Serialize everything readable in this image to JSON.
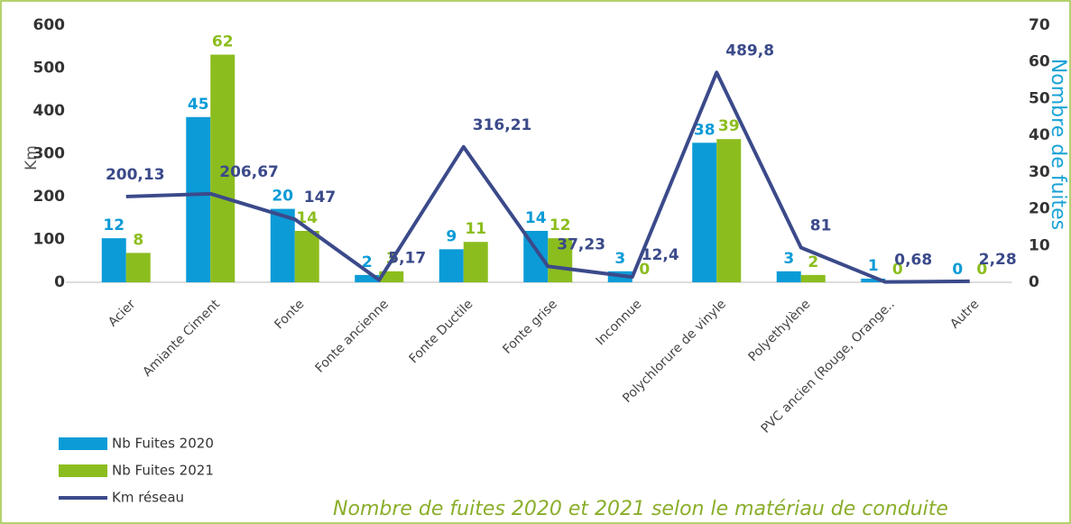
{
  "chart_data": {
    "type": "bar_line",
    "title": "Nombre de fuites 2020 et 2021 selon le matériau de conduite",
    "ylabel": "Km",
    "y2label": "Nombre de fuites",
    "categories": [
      "Acier",
      "Amiante Ciment",
      "Fonte",
      "Fonte ancienne",
      "Fonte Ductile",
      "Fonte grise",
      "Inconnue",
      "Polychlorure de vinyle",
      "Polyethylène",
      "PVC ancien (Rouge, Orange..",
      "Autre"
    ],
    "series": [
      {
        "name": "Nb Fuites 2020",
        "type": "bar",
        "axis": "y2",
        "color": "#0b9bd7",
        "values": [
          12,
          45,
          20,
          2,
          9,
          14,
          3,
          38,
          3,
          1,
          0
        ]
      },
      {
        "name": "Nb Fuites 2021",
        "type": "bar",
        "axis": "y2",
        "color": "#8cbd1e",
        "values": [
          8,
          62,
          14,
          3,
          11,
          12,
          0,
          39,
          2,
          0,
          0
        ]
      },
      {
        "name": "Km réseau",
        "type": "line",
        "axis": "y",
        "color": "#3b4a8a",
        "values": [
          200.13,
          206.67,
          147,
          5.17,
          316.21,
          37.23,
          12.4,
          489.8,
          81,
          0.68,
          2.28
        ],
        "value_labels": [
          "200,13",
          "206,67",
          "147",
          "5,17",
          "316,21",
          "37,23",
          "12,4",
          "489,8",
          "81",
          "0,68",
          "2,28"
        ]
      }
    ],
    "ylim": [
      0,
      600
    ],
    "yticks": [
      0,
      100,
      200,
      300,
      400,
      500,
      600
    ],
    "y2lim": [
      0,
      70
    ],
    "y2ticks": [
      0,
      10,
      20,
      30,
      40,
      50,
      60,
      70
    ],
    "legend": "bottom-left",
    "grid": false
  }
}
